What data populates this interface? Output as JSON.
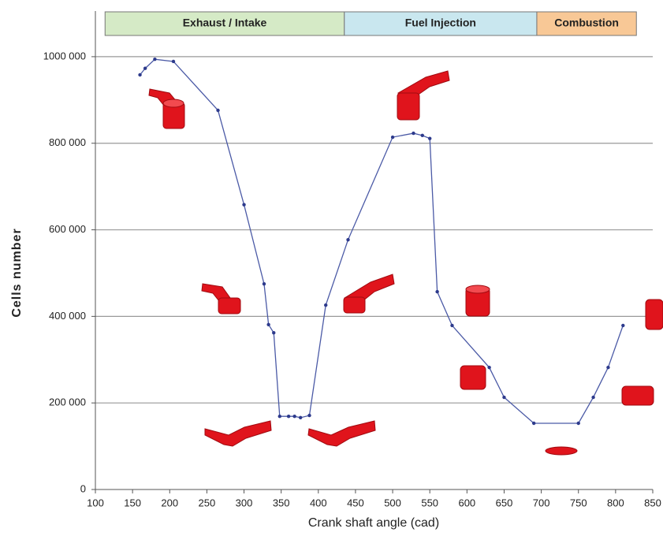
{
  "chart_data": {
    "type": "line",
    "x_label": "Crank shaft angle  (cad)",
    "y_label": "Cells number",
    "x": [
      160,
      167,
      180,
      205,
      265,
      300,
      327,
      333,
      340,
      348,
      360,
      368,
      376,
      388,
      410,
      440,
      500,
      528,
      540,
      550,
      560,
      580,
      630,
      650,
      690,
      750,
      770,
      790,
      810
    ],
    "values": [
      958000,
      973000,
      994000,
      989000,
      876000,
      658000,
      475000,
      381000,
      362000,
      169000,
      169000,
      169000,
      166000,
      171000,
      426000,
      577000,
      814000,
      823000,
      818000,
      811000,
      457000,
      379000,
      282000,
      213000,
      153000,
      153000,
      213000,
      282000,
      379000
    ],
    "color": "#4b5aa6",
    "xlim": [
      100,
      850
    ],
    "ylim": [
      0,
      1100000
    ],
    "xticks": [
      100,
      150,
      200,
      250,
      300,
      350,
      400,
      450,
      500,
      550,
      600,
      650,
      700,
      750,
      800,
      850
    ],
    "yticks": [
      0,
      {
        "value": 200000,
        "label": "200 000"
      },
      {
        "value": 400000,
        "label": "400 000"
      },
      {
        "value": 600000,
        "label": "600 000"
      },
      {
        "value": 800000,
        "label": "800 000"
      },
      {
        "value": 1000000,
        "label": "1000 000"
      }
    ],
    "grid": true,
    "phases": [
      {
        "label": "Exhaust / Intake",
        "start": 113,
        "end": 435,
        "color": "#d5eac6"
      },
      {
        "label": "Fuel Injection",
        "start": 435,
        "end": 694,
        "color": "#c9e7ef"
      },
      {
        "label": "Combustion",
        "start": 694,
        "end": 828,
        "color": "#f8c896"
      }
    ]
  }
}
